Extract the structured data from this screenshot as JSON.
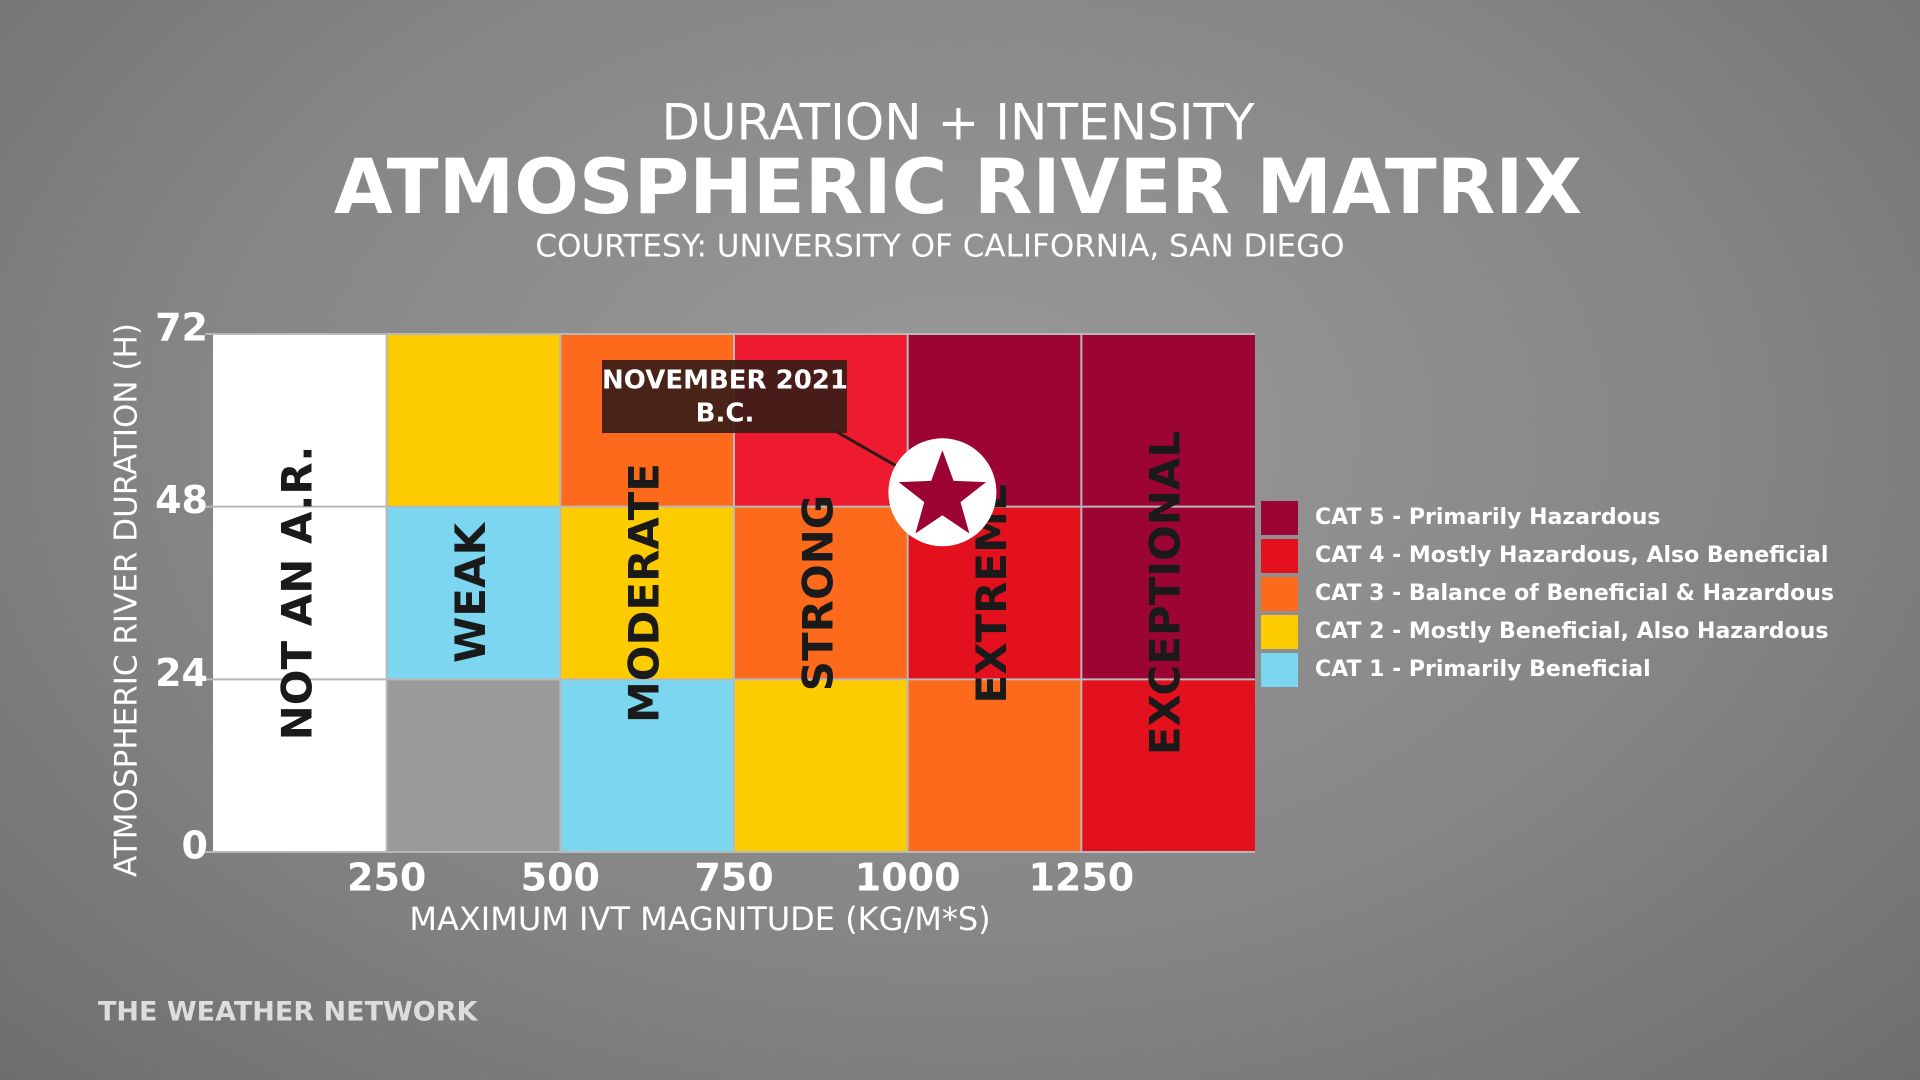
{
  "chart_data": {
    "type": "matrix",
    "supertitle": "DURATION + INTENSITY",
    "title": "ATMOSPHERIC RIVER MATRIX",
    "subtitle": "COURTESY: UNIVERSITY OF CALIFORNIA, SAN DIEGO",
    "xlabel": "MAXIMUM IVT MAGNITUDE (KG/M*S)",
    "ylabel": "ATMOSPHERIC RIVER DURATION (H)",
    "xlim": [
      0,
      1500
    ],
    "xticks": [
      250,
      500,
      750,
      1000,
      1250
    ],
    "ylim": [
      0,
      72
    ],
    "yticks": [
      0,
      24,
      48,
      72
    ],
    "categories": [
      "NOT AN A.R.",
      "WEAK",
      "MODERATE",
      "STRONG",
      "EXTREME",
      "EXCEPTIONAL"
    ],
    "cells": [
      [
        "#ffffff",
        "#9a9a9c",
        "#7dd6f0",
        "#fdcc00",
        "#fe6a1c",
        "#e3101d"
      ],
      [
        "#ffffff",
        "#7dd6f0",
        "#fdcc00",
        "#fe6a1c",
        "#e3101d",
        "#9c0533"
      ],
      [
        "#ffffff",
        "#fdcc00",
        "#fe6a1c",
        "#ee1a30",
        "#9c0533",
        "#9c0533"
      ]
    ],
    "legend": [
      {
        "name": "CAT 5 - Primarily Hazardous",
        "color": "#9c0533"
      },
      {
        "name": "CAT 4 - Mostly Hazardous, Also Beneficial",
        "color": "#e3101d"
      },
      {
        "name": "CAT 3 - Balance of Beneficial & Hazardous",
        "color": "#fe6a1c"
      },
      {
        "name": "CAT 2 - Mostly Beneficial, Also Hazardous",
        "color": "#fdcc00"
      },
      {
        "name": "CAT 1 - Primarily Beneficial",
        "color": "#7dd6f0"
      }
    ],
    "annotation": {
      "lines": [
        "NOVEMBER 2021",
        "B.C."
      ],
      "x": 1050,
      "y": 50
    },
    "footer": "THE WEATHER NETWORK"
  }
}
